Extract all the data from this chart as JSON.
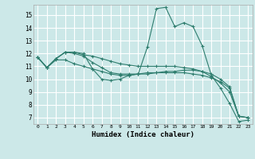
{
  "xlabel": "Humidex (Indice chaleur)",
  "ylabel": "",
  "bg_color": "#cce8e8",
  "grid_color": "#ffffff",
  "line_color": "#2e7d6e",
  "xlim": [
    -0.5,
    23.5
  ],
  "ylim": [
    6.5,
    15.8
  ],
  "xticks": [
    0,
    1,
    2,
    3,
    4,
    5,
    6,
    7,
    8,
    9,
    10,
    11,
    12,
    13,
    14,
    15,
    16,
    17,
    18,
    19,
    20,
    21,
    22,
    23
  ],
  "yticks": [
    7,
    8,
    9,
    10,
    11,
    12,
    13,
    14,
    15
  ],
  "series": [
    [
      11.7,
      10.9,
      11.6,
      12.1,
      12.1,
      12.0,
      10.8,
      10.0,
      9.9,
      10.0,
      10.3,
      10.4,
      12.5,
      15.5,
      15.6,
      14.1,
      14.4,
      14.1,
      12.6,
      10.3,
      9.3,
      8.1,
      6.7,
      6.8
    ],
    [
      11.7,
      10.9,
      11.6,
      12.1,
      12.0,
      11.8,
      11.3,
      10.9,
      10.5,
      10.4,
      10.4,
      10.4,
      10.4,
      10.5,
      10.5,
      10.5,
      10.5,
      10.4,
      10.3,
      10.1,
      9.8,
      9.3,
      7.1,
      7.0
    ],
    [
      11.7,
      10.9,
      11.5,
      11.5,
      11.2,
      11.0,
      10.8,
      10.6,
      10.4,
      10.3,
      10.3,
      10.4,
      10.5,
      10.5,
      10.6,
      10.6,
      10.7,
      10.7,
      10.6,
      10.4,
      10.0,
      9.4,
      7.1,
      7.0
    ],
    [
      11.7,
      10.9,
      11.6,
      12.1,
      12.1,
      11.9,
      11.8,
      11.6,
      11.4,
      11.2,
      11.1,
      11.0,
      11.0,
      11.0,
      11.0,
      11.0,
      10.9,
      10.8,
      10.6,
      10.2,
      9.7,
      9.0,
      7.1,
      7.0
    ]
  ]
}
